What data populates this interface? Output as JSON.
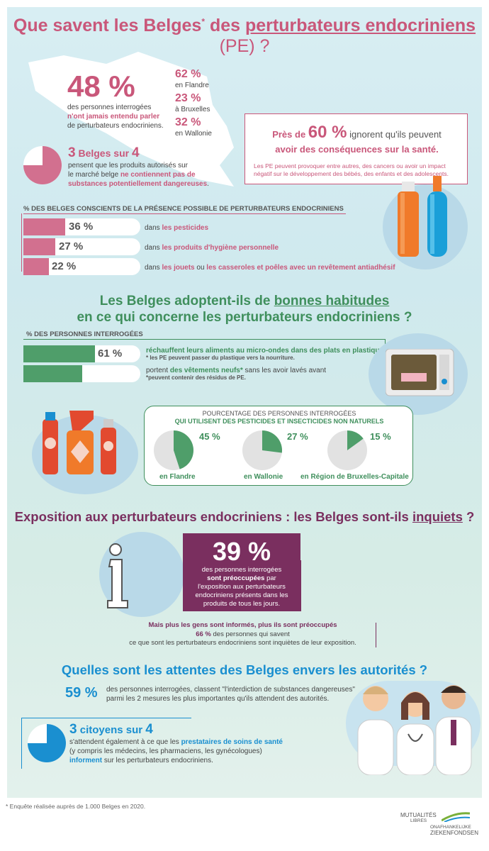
{
  "header": {
    "title_part1": "Que savent les Belges",
    "title_star": "*",
    "title_part2": " des ",
    "title_part3": "perturbateurs endocriniens",
    "title_part4": " (PE) ?"
  },
  "awareness": {
    "big_pct": "48 %",
    "desc_line1": "des personnes interrogées",
    "desc_line2": "n'ont jamais entendu parler",
    "desc_line3": "de perturbateurs endocriniens.",
    "regions": [
      {
        "pct": "62 %",
        "label": "en Flandre"
      },
      {
        "pct": "23 %",
        "label": "à Bruxelles"
      },
      {
        "pct": "32 %",
        "label": "en Wallonie"
      }
    ]
  },
  "three_of_four": {
    "num": "3",
    "word1": " Belges ",
    "word2": "sur ",
    "num2": "4",
    "line1": "pensent que les produits autorisés sur",
    "line2a": "le marché belge ",
    "line2b": "ne contiennent pas de",
    "line3": "substances potentiellement dangereuses",
    "line3_end": ".",
    "pie_fraction": 0.75
  },
  "box60": {
    "pre": "Près de ",
    "pct": "60 %",
    "post": " ignorent qu'ils peuvent",
    "line2": "avoir des conséquences sur la santé.",
    "detail1": "Les PE peuvent provoquer entre autres, des cancers ou avoir un impact",
    "detail2": "négatif sur le développement des bébés, des enfants et des adolescents."
  },
  "conscious": {
    "heading": "% DES BELGES CONSCIENTS DE LA PRÉSENCE POSSIBLE DE PERTURBATEURS ENDOCRINIENS",
    "items": [
      {
        "value": 36,
        "label": "36 %",
        "pre": "dans ",
        "hl": "les pesticides",
        "post": "",
        "hl2": "",
        "post2": ""
      },
      {
        "value": 27,
        "label": "27 %",
        "pre": "dans ",
        "hl": "les produits d'hygiène personnelle",
        "post": "",
        "hl2": "",
        "post2": ""
      },
      {
        "value": 22,
        "label": "22 %",
        "pre": "dans ",
        "hl": "les jouets",
        "post": " ou ",
        "hl2": "les casseroles et poêles avec un revêtement antiadhésif",
        "post2": ""
      }
    ],
    "color": "#d2708f"
  },
  "habits": {
    "title1": "Les Belges adoptent-ils de ",
    "title1_u": "bonnes habitudes",
    "title2": "en ce qui concerne les perturbateurs endocriniens ?",
    "heading": "% DES PERSONNES INTERROGÉES",
    "items": [
      {
        "value": 61,
        "label": "61 %",
        "main": "réchauffent leurs aliments au micro-ondes dans des plats en plastique*",
        "note": "* les PE peuvent passer du plastique vers la nourriture."
      },
      {
        "value": 50,
        "label": "50 %",
        "main_pre": "portent ",
        "main_hl": "des vêtements neufs*",
        "main_post": " sans les avoir lavés avant",
        "note": "*peuvent contenir des résidus de PE."
      }
    ],
    "color": "#4f9e6a"
  },
  "pesticides": {
    "heading1": "POURCENTAGE DES PERSONNES INTERROGÉES",
    "heading2": "QUI UTILISENT DES PESTICIDES ET INSECTICIDES NON NATURELS",
    "regions": [
      {
        "value": 45,
        "label": "45 %",
        "name": "en Flandre"
      },
      {
        "value": 27,
        "label": "27 %",
        "name": "en Wallonie"
      },
      {
        "value": 15,
        "label": "15 %",
        "name": "en Région de Bruxelles-Capitale"
      }
    ]
  },
  "worry": {
    "title_pre": "Exposition aux perturbateurs endocriniens : les Belges sont-ils ",
    "title_u": "inquiets",
    "title_post": " ?",
    "big": "39 %",
    "l1": "des personnes interrogées",
    "l2": "sont préoccupées",
    "l2b": " par",
    "l3": "l'exposition aux perturbateurs",
    "l4": "endocriniens présents dans les",
    "l5": "produits de tous les jours.",
    "info1": "Mais plus les gens sont informés, plus ils sont préoccupés",
    "info2_pct": "66 %",
    "info2": " des personnes qui savent",
    "info3": "ce que sont les perturbateurs endocriniens sont inquiètes de leur exposition."
  },
  "expectations": {
    "title": "Quelles sont les attentes des Belges envers les autorités ?",
    "pct": "59 %",
    "l1": "des personnes interrogées, classent \"l'interdiction de substances dangereuses\"",
    "l2": "parmi les 2 mesures les plus importantes qu'ils attendent des autorités.",
    "num": "3",
    "mid": " citoyens sur ",
    "num2": "4",
    "c1": "s'attendent également à ce que les ",
    "c1hl": "prestataires de soins de santé",
    "c2": "(y compris les médecins, les pharmaciens, les gynécologues)",
    "c3hl": "informent",
    "c3": " sur les perturbateurs endocriniens.",
    "pie_fraction": 0.75
  },
  "footer": {
    "footnote": "* Enquête réalisée auprès de 1.000 Belges en 2020.",
    "logo1": "MUTUALITÉS",
    "logo2": "LIBRES",
    "logo3": "ONAFHANKELIJKE",
    "logo4": "ZIEKENFONDSEN"
  }
}
